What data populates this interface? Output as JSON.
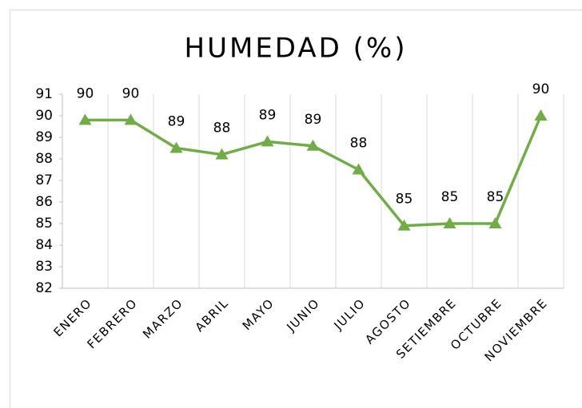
{
  "chart_data": {
    "type": "line",
    "title": "HUMEDAD (%)",
    "categories": [
      "ENERO",
      "FEBRERO",
      "MARZO",
      "ABRIL",
      "MAYO",
      "JUNIO",
      "JULIO",
      "AGOSTO",
      "SETIEMBRE",
      "OCTUBRE",
      "NOVIEMBRE"
    ],
    "values": [
      89.8,
      89.8,
      88.5,
      88.2,
      88.8,
      88.6,
      87.5,
      84.9,
      85.0,
      85.0,
      90.0
    ],
    "value_labels": [
      "90",
      "90",
      "89",
      "88",
      "89",
      "89",
      "88",
      "85",
      "85",
      "85",
      "90"
    ],
    "color": "#70ad47",
    "marker": "triangle",
    "ylim": [
      82,
      91
    ],
    "yticks": [
      82,
      83,
      84,
      85,
      86,
      87,
      88,
      89,
      90,
      91
    ],
    "xgrid": true
  }
}
